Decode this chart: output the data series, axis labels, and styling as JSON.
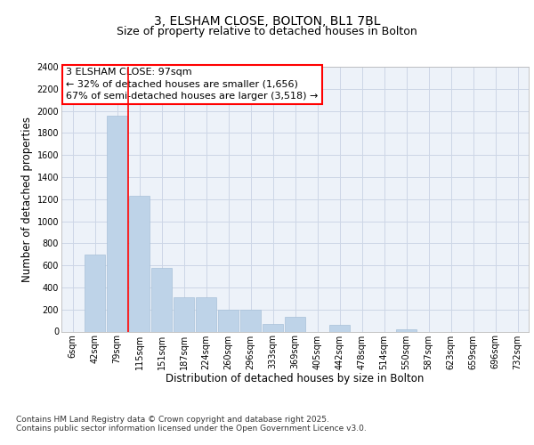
{
  "title_line1": "3, ELSHAM CLOSE, BOLTON, BL1 7BL",
  "title_line2": "Size of property relative to detached houses in Bolton",
  "xlabel": "Distribution of detached houses by size in Bolton",
  "ylabel": "Number of detached properties",
  "categories": [
    "6sqm",
    "42sqm",
    "79sqm",
    "115sqm",
    "151sqm",
    "187sqm",
    "224sqm",
    "260sqm",
    "296sqm",
    "333sqm",
    "369sqm",
    "405sqm",
    "442sqm",
    "478sqm",
    "514sqm",
    "550sqm",
    "587sqm",
    "623sqm",
    "659sqm",
    "696sqm",
    "732sqm"
  ],
  "values": [
    0,
    700,
    1960,
    1230,
    580,
    310,
    310,
    200,
    200,
    70,
    130,
    0,
    60,
    0,
    0,
    20,
    0,
    0,
    0,
    0,
    0
  ],
  "bar_color": "#bed3e8",
  "bar_edge_color": "#a8c0d8",
  "grid_color": "#ccd6e6",
  "background_color": "#edf2f9",
  "red_line_index": 2,
  "annotation_box": {
    "title": "3 ELSHAM CLOSE: 97sqm",
    "line1": "← 32% of detached houses are smaller (1,656)",
    "line2": "67% of semi-detached houses are larger (3,518) →"
  },
  "ylim": [
    0,
    2400
  ],
  "yticks": [
    0,
    200,
    400,
    600,
    800,
    1000,
    1200,
    1400,
    1600,
    1800,
    2000,
    2200,
    2400
  ],
  "footer_line1": "Contains HM Land Registry data © Crown copyright and database right 2025.",
  "footer_line2": "Contains public sector information licensed under the Open Government Licence v3.0.",
  "title_fontsize": 10,
  "subtitle_fontsize": 9,
  "axis_label_fontsize": 8.5,
  "tick_fontsize": 7,
  "annotation_fontsize": 8,
  "footer_fontsize": 6.5
}
